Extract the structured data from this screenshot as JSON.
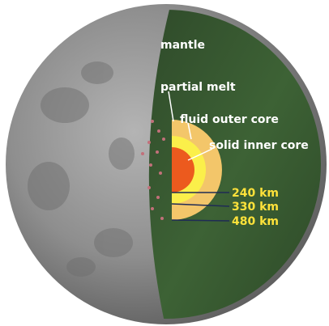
{
  "labels": {
    "mantle": "mantle",
    "partial_melt": "partial melt",
    "fluid_outer_core": "fluid outer core",
    "solid_inner_core": "solid inner core"
  },
  "depths": [
    "240 km",
    "330 km",
    "480 km"
  ]
}
